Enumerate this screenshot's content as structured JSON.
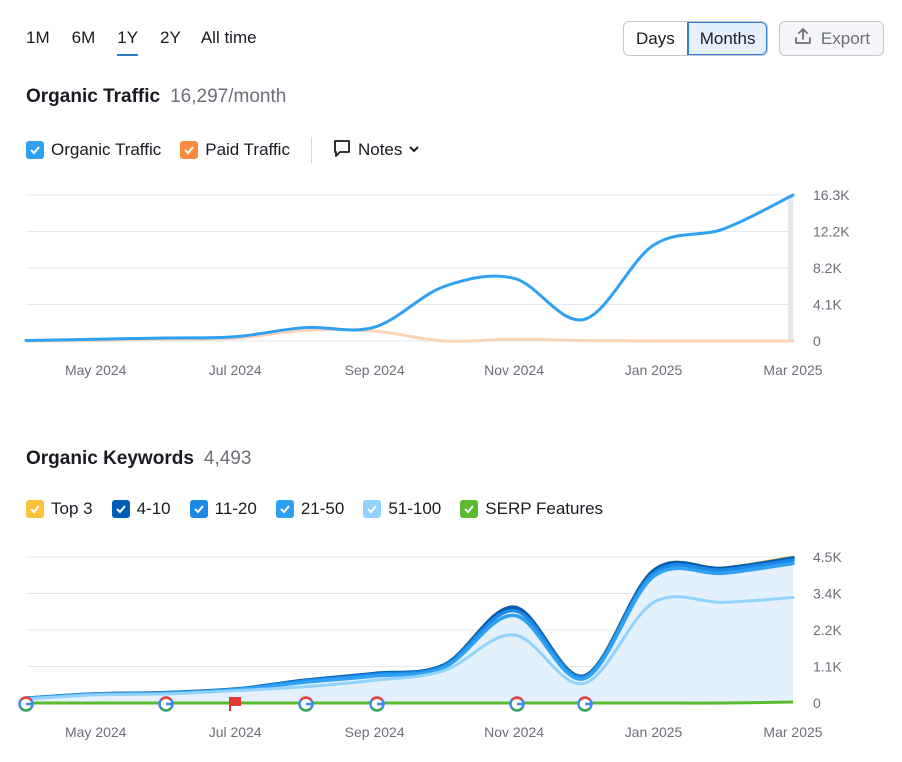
{
  "range_tabs": [
    {
      "label": "1M",
      "active": false
    },
    {
      "label": "6M",
      "active": false
    },
    {
      "label": "1Y",
      "active": true
    },
    {
      "label": "2Y",
      "active": false
    },
    {
      "label": "All time",
      "active": false
    }
  ],
  "granularity": {
    "days": "Days",
    "months": "Months",
    "selected": "Months"
  },
  "export": {
    "label": "Export",
    "icon": "export-icon"
  },
  "traffic": {
    "title": "Organic Traffic",
    "value": "16,297/month",
    "legend": [
      {
        "label": "Organic Traffic",
        "color": "#2ea1f2",
        "checked": true
      },
      {
        "label": "Paid Traffic",
        "color": "#fb8b3c",
        "checked": true
      }
    ],
    "notes_label": "Notes"
  },
  "keywords": {
    "title": "Organic Keywords",
    "value": "4,493",
    "legend": [
      {
        "label": "Top 3",
        "color": "#fdc23c",
        "checked": true
      },
      {
        "label": "4-10",
        "color": "#005eb8",
        "checked": true
      },
      {
        "label": "11-20",
        "color": "#1c89e8",
        "checked": true
      },
      {
        "label": "21-50",
        "color": "#2ea1f2",
        "checked": true
      },
      {
        "label": "51-100",
        "color": "#92d2fe",
        "checked": true
      },
      {
        "label": "SERP Features",
        "color": "#59bb2e",
        "checked": true
      }
    ]
  },
  "chart_data": [
    {
      "type": "line",
      "x": [
        "Apr 2024",
        "May 2024",
        "Jun 2024",
        "Jul 2024",
        "Aug 2024",
        "Sep 2024",
        "Oct 2024",
        "Nov 2024",
        "Dec 2024",
        "Jan 2025",
        "Feb 2025",
        "Mar 2025"
      ],
      "xticks": [
        "May 2024",
        "Jul 2024",
        "Sep 2024",
        "Nov 2024",
        "Jan 2025",
        "Mar 2025"
      ],
      "yticks": [
        "16.3K",
        "12.2K",
        "8.2K",
        "4.1K",
        "0"
      ],
      "ylim": [
        0,
        16300
      ],
      "series": [
        {
          "name": "Organic Traffic",
          "color": "#2ea1f2",
          "values": [
            50,
            200,
            330,
            480,
            1500,
            1550,
            6100,
            7000,
            2400,
            10700,
            12500,
            16297
          ]
        },
        {
          "name": "Paid Traffic",
          "color": "#fbd3b6",
          "values": [
            0,
            50,
            200,
            300,
            1200,
            1100,
            0,
            200,
            50,
            0,
            0,
            0
          ]
        }
      ],
      "grid": true
    },
    {
      "type": "area",
      "x": [
        "Apr 2024",
        "May 2024",
        "Jun 2024",
        "Jul 2024",
        "Aug 2024",
        "Sep 2024",
        "Oct 2024",
        "Nov 2024",
        "Dec 2024",
        "Jan 2025",
        "Feb 2025",
        "Mar 2025"
      ],
      "xticks": [
        "May 2024",
        "Jul 2024",
        "Sep 2024",
        "Nov 2024",
        "Jan 2025",
        "Mar 2025"
      ],
      "yticks": [
        "4.5K",
        "3.4K",
        "2.2K",
        "1.1K",
        "0"
      ],
      "ylim": [
        0,
        4500
      ],
      "series": [
        {
          "name": "51-100",
          "color": "#92d2fe",
          "values": [
            130,
            250,
            280,
            380,
            500,
            700,
            1000,
            2100,
            600,
            3100,
            3100,
            3250
          ]
        },
        {
          "name": "21-50",
          "color": "#2ea1f2",
          "values": [
            140,
            270,
            300,
            410,
            640,
            830,
            1100,
            2700,
            750,
            3900,
            4000,
            4300
          ]
        },
        {
          "name": "11-20",
          "color": "#1c89e8",
          "values": [
            145,
            275,
            310,
            420,
            680,
            880,
            1150,
            2850,
            800,
            4000,
            4100,
            4400
          ]
        },
        {
          "name": "4-10",
          "color": "#005eb8",
          "values": [
            150,
            280,
            320,
            430,
            700,
            910,
            1180,
            2950,
            830,
            4080,
            4150,
            4470
          ]
        },
        {
          "name": "Top 3",
          "color": "#fdc23c",
          "values": [
            150,
            280,
            320,
            430,
            700,
            910,
            1180,
            2960,
            840,
            4090,
            4160,
            4493
          ]
        },
        {
          "name": "SERP Features",
          "color": "#59bb2e",
          "values": [
            0,
            0,
            0,
            0,
            0,
            0,
            0,
            0,
            0,
            0,
            0,
            30
          ]
        }
      ],
      "grid": true
    }
  ]
}
